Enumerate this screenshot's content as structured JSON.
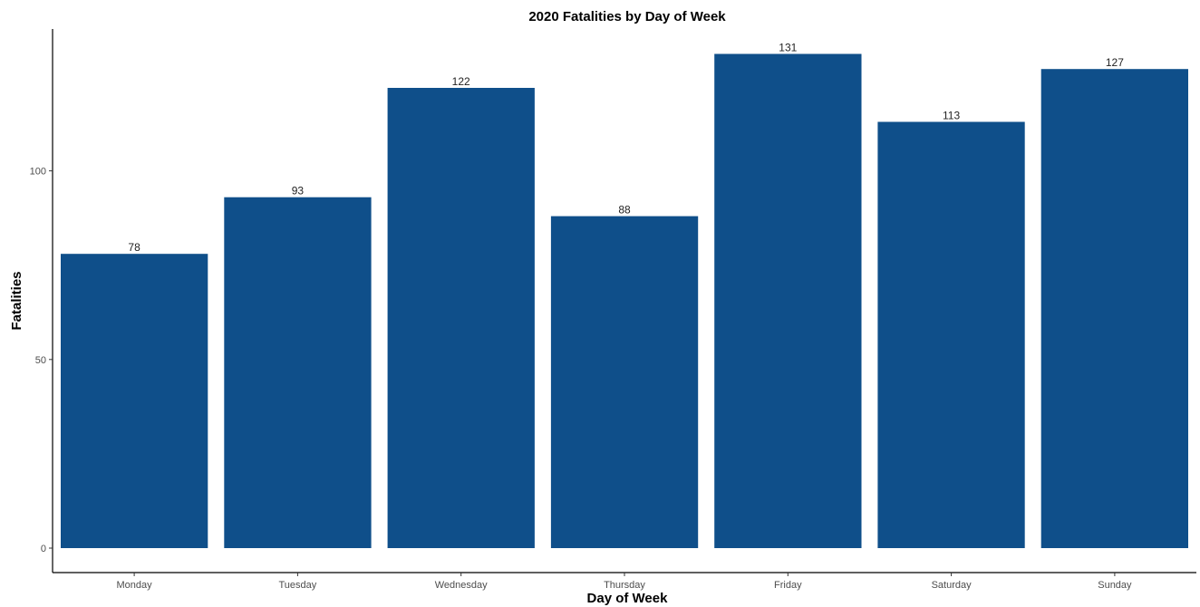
{
  "chart_data": {
    "type": "bar",
    "title": "2020 Fatalities by Day of Week",
    "xlabel": "Day of Week",
    "ylabel": "Fatalities",
    "categories": [
      "Monday",
      "Tuesday",
      "Wednesday",
      "Thursday",
      "Friday",
      "Saturday",
      "Sunday"
    ],
    "values": [
      78,
      93,
      122,
      88,
      131,
      113,
      127
    ],
    "ylim": [
      0,
      137.55
    ],
    "yticks": [
      0,
      50,
      100
    ],
    "grid": false,
    "legend": "none",
    "bar_color": "#0f4f8a",
    "axis_color": "#000000"
  }
}
